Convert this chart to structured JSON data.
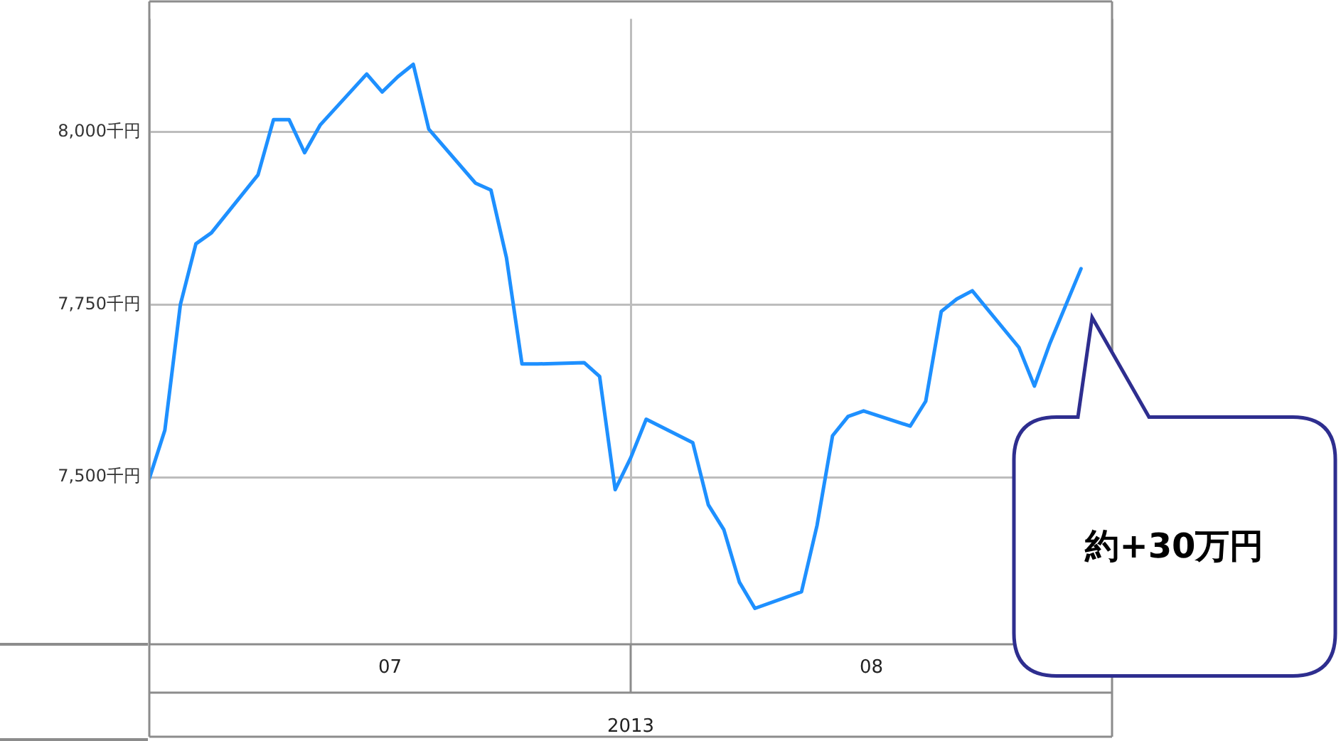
{
  "chart_data": {
    "type": "line",
    "xlabel": "2013",
    "x": [
      "2013-07-01",
      "2013-07-02",
      "2013-07-03",
      "2013-07-04",
      "2013-07-05",
      "2013-07-08",
      "2013-07-09",
      "2013-07-10",
      "2013-07-11",
      "2013-07-12",
      "2013-07-15",
      "2013-07-16",
      "2013-07-17",
      "2013-07-18",
      "2013-07-19",
      "2013-07-22",
      "2013-07-23",
      "2013-07-24",
      "2013-07-25",
      "2013-07-26",
      "2013-07-29",
      "2013-07-30",
      "2013-07-31",
      "2013-08-01",
      "2013-08-02",
      "2013-08-05",
      "2013-08-06",
      "2013-08-07",
      "2013-08-08",
      "2013-08-09",
      "2013-08-12",
      "2013-08-13",
      "2013-08-14",
      "2013-08-15",
      "2013-08-16",
      "2013-08-19",
      "2013-08-20",
      "2013-08-21",
      "2013-08-22",
      "2013-08-23",
      "2013-08-26",
      "2013-08-27",
      "2013-08-28",
      "2013-08-30"
    ],
    "series": [
      {
        "color": "#1e90ff",
        "values": [
          7498,
          7568,
          7750,
          7838,
          7854,
          7938,
          8018,
          8018,
          7970,
          8010,
          8084,
          8058,
          8080,
          8098,
          8004,
          7926,
          7916,
          7818,
          7664,
          7664,
          7666,
          7646,
          7482,
          7528,
          7584,
          7550,
          7460,
          7424,
          7348,
          7310,
          7334,
          7430,
          7560,
          7588,
          7596,
          7574,
          7610,
          7740,
          7758,
          7770,
          7688,
          7632,
          7694,
          7802
        ]
      }
    ],
    "xlim": [
      "2013-07-01",
      "2013-09-01"
    ],
    "xticks": [
      {
        "value": "2013-07-01",
        "label": null
      },
      {
        "value": "2013-07-16T12:00",
        "label": "07"
      },
      {
        "value": "2013-08-01",
        "label": null
      },
      {
        "value": "2013-08-16T12:00",
        "label": "08"
      },
      {
        "value": "2013-09-01",
        "label": null
      }
    ],
    "ylim": [
      7258,
      8164
    ],
    "yticks": [
      {
        "value": 7500,
        "label": "7,500千円"
      },
      {
        "value": 7750,
        "label": "7,750千円"
      },
      {
        "value": 8000,
        "label": "8,000千円"
      }
    ],
    "grid": true,
    "marker": "none",
    "line_style": "solid",
    "legend": false,
    "annotations": [
      "約+30万円"
    ]
  }
}
